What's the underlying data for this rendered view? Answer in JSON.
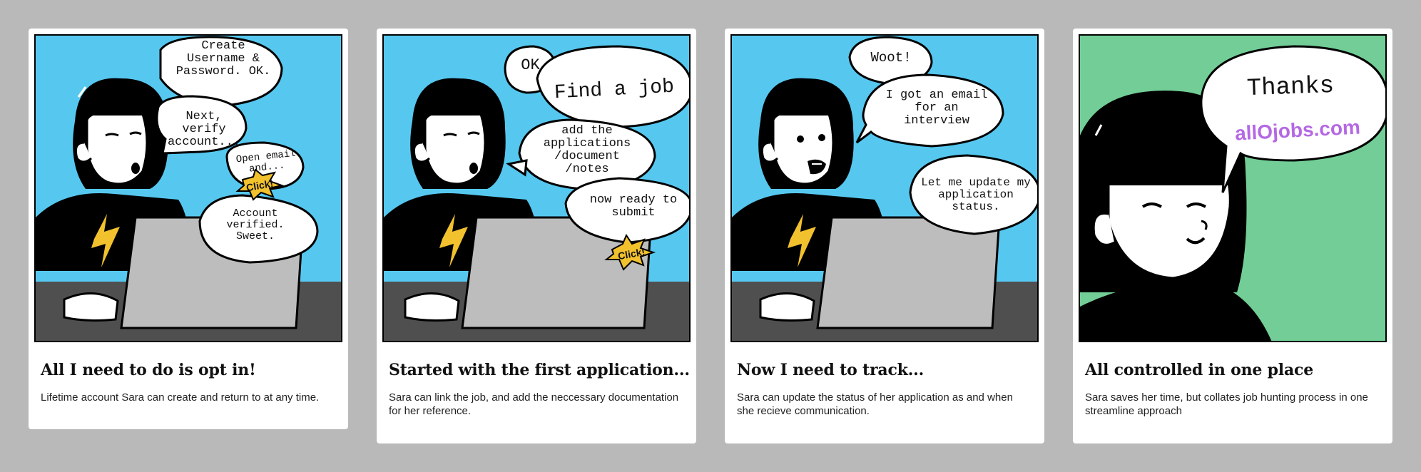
{
  "colors": {
    "background": "#b9b9b9",
    "sky": "#56c8f0",
    "green": "#72ce96",
    "brand": "#b469e3",
    "bolt": "#f2c12e",
    "laptop": "#bdbdbd",
    "desk": "#4f4f4f"
  },
  "panels": [
    {
      "title": "All I need to do is opt in!",
      "description": "Lifetime account Sara can create and return to at any time.",
      "bubbles": [
        "Create Username & Password. OK.",
        "Next, verify account...",
        "Open email and...",
        "Account verified. Sweet."
      ],
      "burst": "Click!"
    },
    {
      "title": "Started with the first application...",
      "description": "Sara can link the job, and add the neccessary documentation for her reference.",
      "bubbles": [
        "OK",
        "Find a job",
        "add the applications /document /notes",
        "now ready to submit"
      ],
      "burst": "Click!"
    },
    {
      "title": "Now I need to track...",
      "description": "Sara can update the status of her application as and when she recieve communication.",
      "bubbles": [
        "Woot!",
        "I got an email for an interview",
        "Let me update my application status."
      ]
    },
    {
      "title": "All controlled in one place",
      "description": "Sara saves her time, but collates job hunting process in one streamline approach",
      "bubbles": [
        "Thanks",
        "allOjobs.com"
      ]
    }
  ]
}
